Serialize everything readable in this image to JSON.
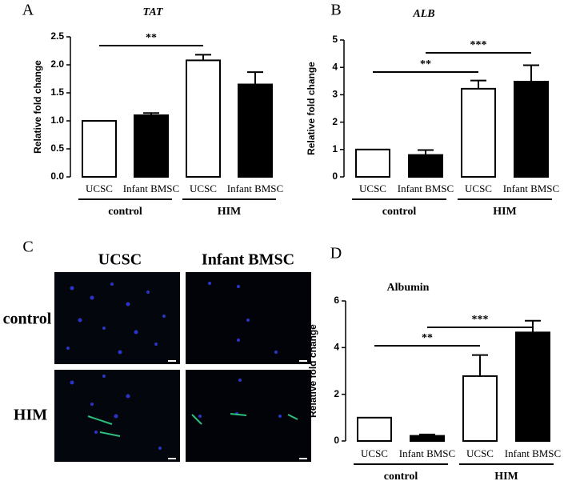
{
  "chart_data": [
    {
      "type": "bar",
      "panel_label": "A",
      "title": "TAT",
      "y_label": "Relative fold change",
      "categories": [
        "UCSC",
        "Infant BMSC",
        "UCSC",
        "Infant BMSC"
      ],
      "groups": [
        "control",
        "HIM"
      ],
      "values": [
        1.0,
        1.1,
        2.08,
        1.65
      ],
      "errors": [
        null,
        0.04,
        0.1,
        0.22
      ],
      "colors": [
        "#ffffff",
        "#000000",
        "#ffffff",
        "#000000"
      ],
      "ylim": [
        0,
        2.5
      ],
      "yticks": [
        {
          "value": 0,
          "label": "0.0"
        },
        0.5,
        {
          "value": 1,
          "label": "1.0"
        },
        1.5,
        {
          "value": 2,
          "label": "2.0"
        },
        2.5
      ],
      "significance": [
        "**"
      ]
    },
    {
      "type": "bar",
      "panel_label": "B",
      "title": "ALB",
      "y_label": "Relative fold change",
      "categories": [
        "UCSC",
        "Infant BMSC",
        "UCSC",
        "Infant BMSC"
      ],
      "groups": [
        "control",
        "HIM"
      ],
      "values": [
        1.0,
        0.8,
        3.22,
        3.48
      ],
      "errors": [
        null,
        0.18,
        0.3,
        0.6
      ],
      "colors": [
        "#ffffff",
        "#000000",
        "#ffffff",
        "#000000"
      ],
      "ylim": [
        0,
        5
      ],
      "yticks": [
        0,
        1,
        2,
        3,
        4,
        5
      ],
      "significance": [
        "**",
        "***"
      ]
    },
    {
      "type": "bar",
      "panel_label": "D",
      "title": "Albumin",
      "y_label": "Relative fold change",
      "categories": [
        "UCSC",
        "Infant BMSC",
        "UCSC",
        "Infant BMSC"
      ],
      "groups": [
        "control",
        "HIM"
      ],
      "values": [
        1.0,
        0.22,
        2.78,
        4.65
      ],
      "errors": [
        null,
        0.06,
        0.9,
        0.5
      ],
      "colors": [
        "#ffffff",
        "#000000",
        "#ffffff",
        "#000000"
      ],
      "ylim": [
        0,
        6
      ],
      "yticks": [
        0,
        2,
        4,
        6
      ],
      "significance": [
        "**",
        "***"
      ]
    }
  ],
  "panel_c": {
    "panel_label": "C",
    "columns": [
      "UCSC",
      "Infant BMSC"
    ],
    "rows": [
      "control",
      "HIM"
    ]
  }
}
